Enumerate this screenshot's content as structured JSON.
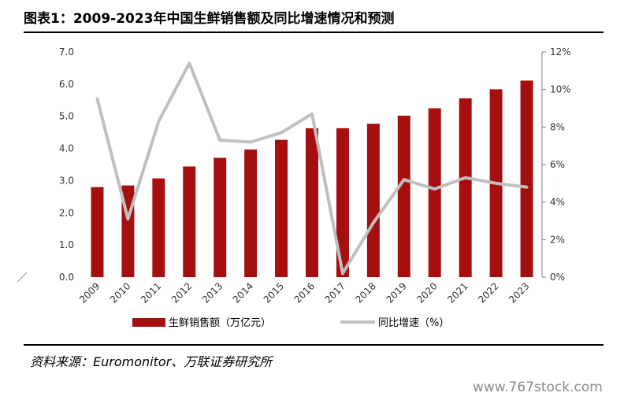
{
  "title": "图表1：2009-2023年中国生鲜销售额及同比增速情况和预测",
  "source": "资料来源：Euromonitor、万联证券研究所",
  "watermark": "www.767stock.com",
  "chart_data": {
    "type": "bar",
    "categories": [
      "2009",
      "2010",
      "2011",
      "2012",
      "2013",
      "2014",
      "2015",
      "2016",
      "2017",
      "2018",
      "2019",
      "2020",
      "2021",
      "2022",
      "2023"
    ],
    "series": [
      {
        "name": "生鲜销售额（万亿元）",
        "type": "bar",
        "axis": "left",
        "color": "#a50f0f",
        "values": [
          2.8,
          2.85,
          3.07,
          3.44,
          3.71,
          3.97,
          4.27,
          4.63,
          4.63,
          4.77,
          5.02,
          5.25,
          5.56,
          5.84,
          6.11
        ]
      },
      {
        "name": "同比增速（%）",
        "type": "line",
        "axis": "right",
        "color": "#bfbfbf",
        "values": [
          9.5,
          3.1,
          8.3,
          11.4,
          7.3,
          7.2,
          7.7,
          8.7,
          0.2,
          2.9,
          5.2,
          4.7,
          5.3,
          5.0,
          4.8
        ]
      }
    ],
    "y_left": {
      "range": [
        0,
        7
      ],
      "ticks": [
        "0.0",
        "1.0",
        "2.0",
        "3.0",
        "4.0",
        "5.0",
        "6.0",
        "7.0"
      ]
    },
    "y_right": {
      "range": [
        0,
        12
      ],
      "ticks": [
        "0%",
        "2%",
        "4%",
        "6%",
        "8%",
        "10%",
        "12%"
      ]
    },
    "grid": false,
    "legend": "bottom-center"
  }
}
